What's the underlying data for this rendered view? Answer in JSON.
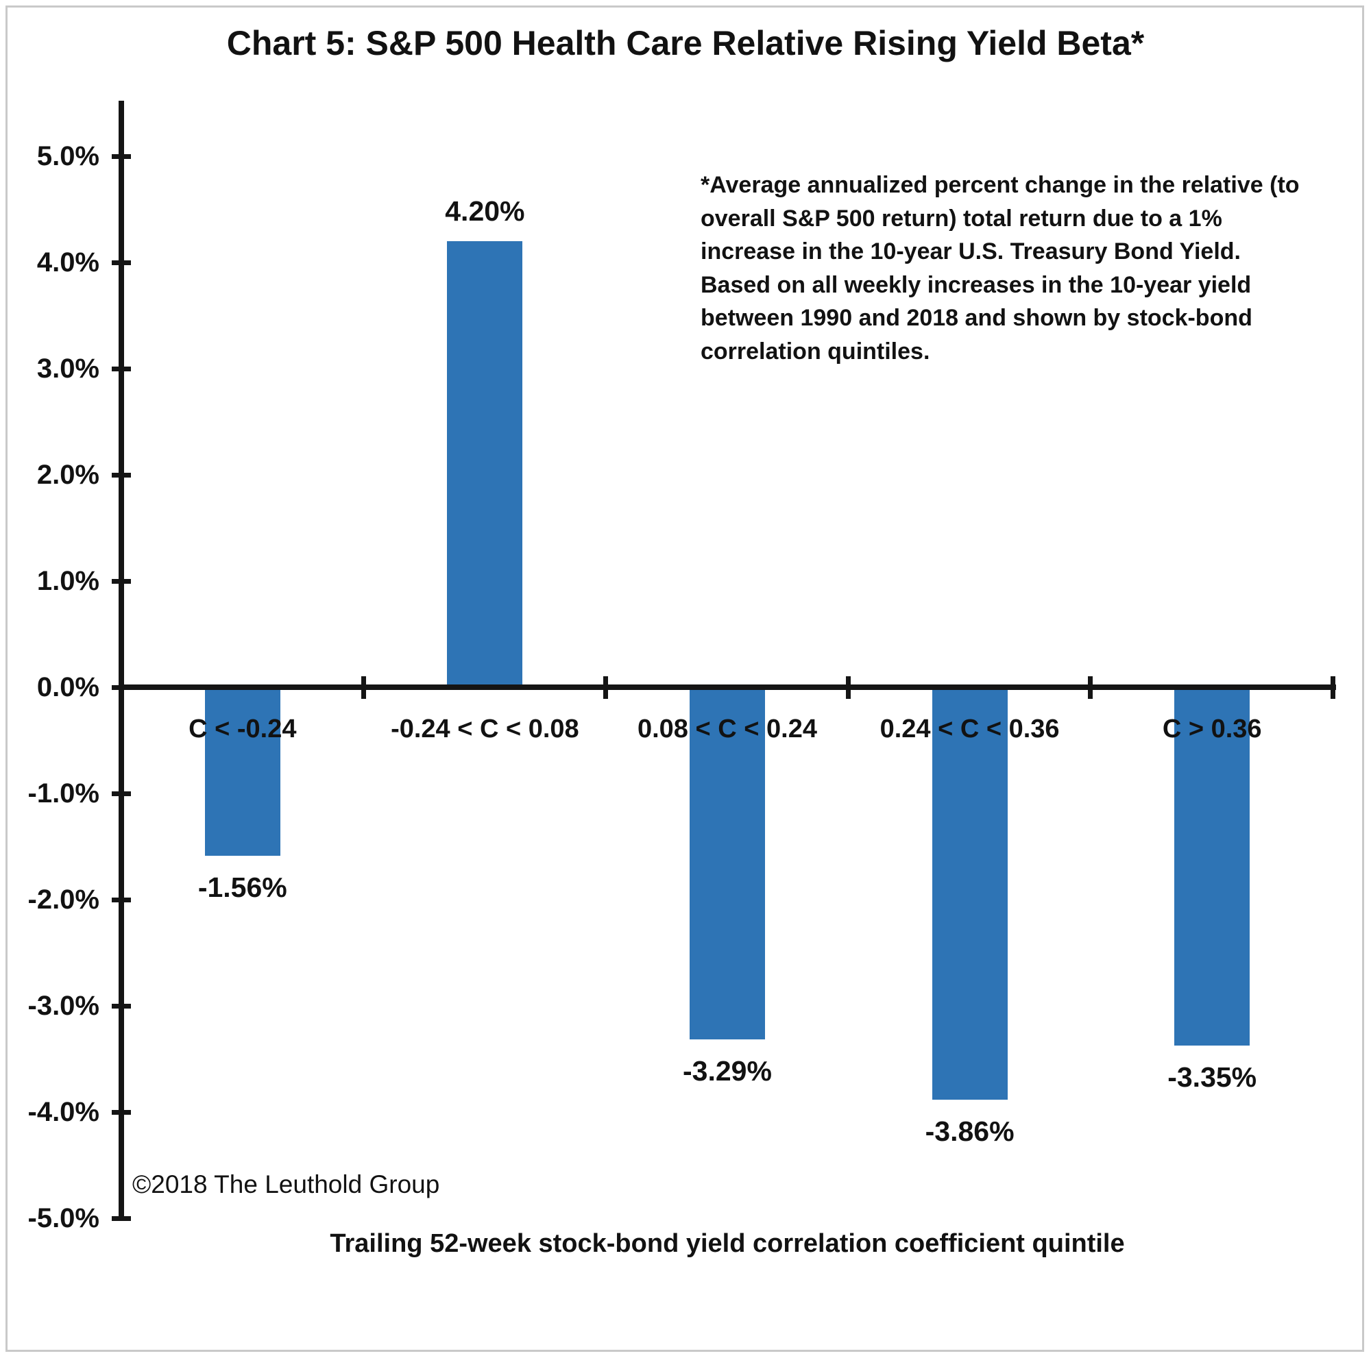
{
  "title": "Chart 5: S&P 500 Health Care Relative Rising Yield Beta*",
  "annotation_lines": [
    "*Average annualized percent change in the relative (to",
    "overall S&P 500 return) total return due to a 1%",
    "increase in the 10-year U.S. Treasury Bond Yield.",
    "Based on all weekly increases in the 10-year yield",
    "between 1990 and 2018 and shown by stock-bond",
    "correlation quintiles."
  ],
  "copyright": "©2018 The Leuthold Group",
  "chart_data": {
    "type": "bar",
    "title": "Chart 5: S&P 500 Health Care Relative Rising Yield Beta*",
    "categories": [
      "C < -0.24",
      "-0.24 < C < 0.08",
      "0.08 < C < 0.24",
      "0.24 < C < 0.36",
      "C > 0.36"
    ],
    "values": [
      -1.56,
      4.2,
      -3.29,
      -3.86,
      -3.35
    ],
    "value_labels": [
      "-1.56%",
      "4.20%",
      "-3.29%",
      "-3.86%",
      "-3.35%"
    ],
    "xlabel": "Trailing 52-week stock-bond yield correlation coefficient quintile",
    "ylabel": "",
    "ylim": [
      -5,
      5
    ],
    "ytick_step": 1.0,
    "ytick_labels": [
      "5.0%",
      "4.0%",
      "3.0%",
      "2.0%",
      "1.0%",
      "0.0%",
      "-1.0%",
      "-2.0%",
      "-3.0%",
      "-4.0%",
      "-5.0%"
    ],
    "bar_color": "#2E74B5",
    "axis_color": "#151515",
    "grid": false,
    "legend": null
  }
}
